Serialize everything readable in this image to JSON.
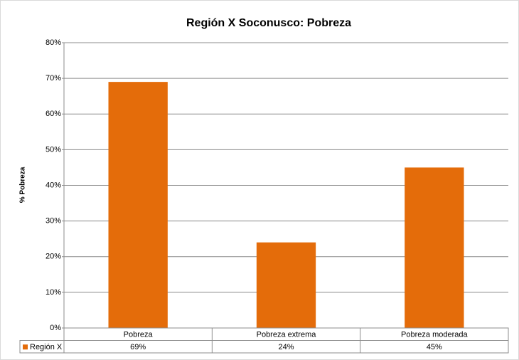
{
  "chart_data": {
    "type": "bar",
    "title": "Región X Soconusco: Pobreza",
    "y_label": "% Pobreza",
    "categories": [
      "Pobreza",
      "Pobreza extrema",
      "Pobreza moderada"
    ],
    "series": [
      {
        "name": "Región X",
        "color": "#e46c0a",
        "values": [
          69,
          24,
          45
        ],
        "value_labels": [
          "69%",
          "24%",
          "45%"
        ]
      }
    ],
    "ylim": [
      0,
      80
    ],
    "yticks": [
      {
        "value": 0,
        "label": "0%"
      },
      {
        "value": 10,
        "label": "10%"
      },
      {
        "value": 20,
        "label": "20%"
      },
      {
        "value": 30,
        "label": "30%"
      },
      {
        "value": 40,
        "label": "40%"
      },
      {
        "value": 50,
        "label": "50%"
      },
      {
        "value": 60,
        "label": "60%"
      },
      {
        "value": 70,
        "label": "70%"
      },
      {
        "value": 80,
        "label": "80%"
      }
    ],
    "grid": true,
    "data_table": true
  }
}
